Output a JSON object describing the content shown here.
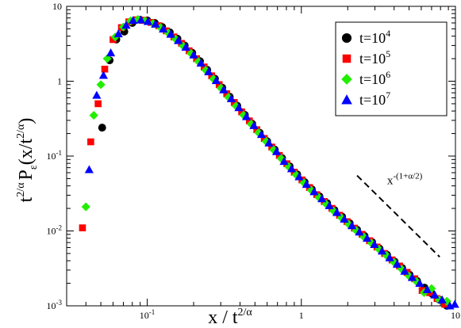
{
  "chart_data": {
    "type": "scatter",
    "title": "",
    "xlabel": "x / t^{2/α}",
    "ylabel": "t^{2/α} P_ε(x/t^{2/α})",
    "xscale": "log",
    "yscale": "log",
    "xlim": [
      0.03,
      10
    ],
    "ylim": [
      0.001,
      10
    ],
    "x_ticks": [
      {
        "value": 0.1,
        "base": "10",
        "exp": "-1"
      },
      {
        "value": 1,
        "label": "1"
      },
      {
        "value": 10,
        "label": "10"
      }
    ],
    "y_ticks": [
      {
        "value": 0.001,
        "base": "10",
        "exp": "-3"
      },
      {
        "value": 0.01,
        "base": "10",
        "exp": "-2"
      },
      {
        "value": 0.1,
        "base": "10",
        "exp": "-1"
      },
      {
        "value": 1,
        "label": "1"
      },
      {
        "value": 10,
        "label": "10"
      }
    ],
    "grid": false,
    "legend_position": "top-right",
    "series": [
      {
        "name_base": "t=10",
        "name_exp": "4",
        "marker": "circle",
        "color": "#000000",
        "points": [
          [
            0.051,
            0.24
          ],
          [
            0.057,
            1.9
          ],
          [
            0.063,
            3.6
          ],
          [
            0.071,
            4.6
          ],
          [
            0.08,
            6.0
          ],
          [
            0.09,
            6.6
          ],
          [
            0.1,
            6.5
          ],
          [
            0.112,
            6.0
          ],
          [
            0.125,
            5.3
          ],
          [
            0.14,
            4.5
          ],
          [
            0.157,
            3.7
          ],
          [
            0.175,
            3.0
          ],
          [
            0.196,
            2.4
          ],
          [
            0.22,
            1.85
          ],
          [
            0.245,
            1.42
          ],
          [
            0.275,
            1.08
          ],
          [
            0.307,
            0.82
          ],
          [
            0.343,
            0.62
          ],
          [
            0.384,
            0.47
          ],
          [
            0.43,
            0.355
          ],
          [
            0.48,
            0.27
          ],
          [
            0.537,
            0.205
          ],
          [
            0.6,
            0.158
          ],
          [
            0.672,
            0.122
          ],
          [
            0.75,
            0.094
          ],
          [
            0.84,
            0.073
          ],
          [
            0.94,
            0.057
          ],
          [
            1.05,
            0.045
          ],
          [
            1.17,
            0.036
          ],
          [
            1.31,
            0.029
          ],
          [
            1.47,
            0.0235
          ],
          [
            1.64,
            0.019
          ],
          [
            1.84,
            0.0155
          ],
          [
            2.06,
            0.0127
          ],
          [
            2.3,
            0.0104
          ],
          [
            2.57,
            0.0086
          ],
          [
            2.88,
            0.0071
          ],
          [
            3.22,
            0.0058
          ],
          [
            3.6,
            0.0048
          ],
          [
            4.03,
            0.0039
          ],
          [
            4.51,
            0.0032
          ],
          [
            5.04,
            0.0026
          ],
          [
            5.64,
            0.00215
          ],
          [
            6.3,
            0.00175
          ],
          [
            7.05,
            0.00145
          ],
          [
            7.9,
            0.0012
          ],
          [
            8.8,
            0.001
          ]
        ]
      },
      {
        "name_base": "t=10",
        "name_exp": "5",
        "marker": "square",
        "color": "#ff0000",
        "points": [
          [
            0.038,
            0.011
          ],
          [
            0.043,
            0.155
          ],
          [
            0.048,
            0.5
          ],
          [
            0.053,
            1.45
          ],
          [
            0.06,
            3.6
          ],
          [
            0.068,
            5.2
          ],
          [
            0.076,
            6.2
          ],
          [
            0.085,
            6.6
          ],
          [
            0.095,
            6.5
          ],
          [
            0.106,
            6.1
          ],
          [
            0.119,
            5.5
          ],
          [
            0.133,
            4.7
          ],
          [
            0.149,
            3.9
          ],
          [
            0.167,
            3.2
          ],
          [
            0.187,
            2.55
          ],
          [
            0.209,
            2.0
          ],
          [
            0.234,
            1.55
          ],
          [
            0.262,
            1.18
          ],
          [
            0.293,
            0.9
          ],
          [
            0.328,
            0.68
          ],
          [
            0.367,
            0.52
          ],
          [
            0.41,
            0.39
          ],
          [
            0.46,
            0.295
          ],
          [
            0.514,
            0.225
          ],
          [
            0.575,
            0.172
          ],
          [
            0.643,
            0.132
          ],
          [
            0.72,
            0.102
          ],
          [
            0.806,
            0.079
          ],
          [
            0.9,
            0.061
          ],
          [
            1.01,
            0.048
          ],
          [
            1.13,
            0.038
          ],
          [
            1.26,
            0.0305
          ],
          [
            1.41,
            0.0247
          ],
          [
            1.58,
            0.02
          ],
          [
            1.77,
            0.0162
          ],
          [
            1.98,
            0.0133
          ],
          [
            2.21,
            0.0109
          ],
          [
            2.48,
            0.009
          ],
          [
            2.77,
            0.0074
          ],
          [
            3.1,
            0.0061
          ],
          [
            3.47,
            0.005
          ],
          [
            3.88,
            0.0041
          ],
          [
            4.34,
            0.0034
          ],
          [
            4.86,
            0.0028
          ],
          [
            5.44,
            0.0023
          ],
          [
            6.08,
            0.0016
          ],
          [
            6.8,
            0.0015
          ],
          [
            7.6,
            0.00125
          ],
          [
            8.5,
            0.00105
          ]
        ]
      },
      {
        "name_base": "t=10",
        "name_exp": "6",
        "marker": "diamond",
        "color": "#22ee00",
        "points": [
          [
            0.04,
            0.021
          ],
          [
            0.045,
            0.35
          ],
          [
            0.05,
            0.9
          ],
          [
            0.055,
            2.0
          ],
          [
            0.062,
            3.9
          ],
          [
            0.07,
            5.3
          ],
          [
            0.078,
            6.4
          ],
          [
            0.087,
            6.7
          ],
          [
            0.097,
            6.4
          ],
          [
            0.109,
            5.9
          ],
          [
            0.122,
            5.2
          ],
          [
            0.137,
            4.4
          ],
          [
            0.153,
            3.65
          ],
          [
            0.171,
            2.95
          ],
          [
            0.192,
            2.35
          ],
          [
            0.215,
            1.83
          ],
          [
            0.24,
            1.4
          ],
          [
            0.269,
            1.07
          ],
          [
            0.301,
            0.81
          ],
          [
            0.337,
            0.61
          ],
          [
            0.377,
            0.465
          ],
          [
            0.422,
            0.352
          ],
          [
            0.472,
            0.268
          ],
          [
            0.528,
            0.205
          ],
          [
            0.591,
            0.157
          ],
          [
            0.661,
            0.121
          ],
          [
            0.74,
            0.093
          ],
          [
            0.828,
            0.072
          ],
          [
            0.926,
            0.056
          ],
          [
            1.04,
            0.044
          ],
          [
            1.16,
            0.035
          ],
          [
            1.3,
            0.028
          ],
          [
            1.45,
            0.0228
          ],
          [
            1.62,
            0.0185
          ],
          [
            1.82,
            0.015
          ],
          [
            2.03,
            0.0123
          ],
          [
            2.27,
            0.0101
          ],
          [
            2.55,
            0.0083
          ],
          [
            2.85,
            0.0069
          ],
          [
            3.19,
            0.0057
          ],
          [
            3.57,
            0.0047
          ],
          [
            4.0,
            0.0038
          ],
          [
            4.47,
            0.0031
          ],
          [
            5.0,
            0.0025
          ],
          [
            5.6,
            0.0021
          ],
          [
            6.27,
            0.0015
          ],
          [
            7.0,
            0.0017
          ],
          [
            7.85,
            0.0012
          ],
          [
            8.8,
            0.00115
          ]
        ]
      },
      {
        "name_base": "t=10",
        "name_exp": "7",
        "marker": "triangle",
        "color": "#0000ff",
        "points": [
          [
            0.042,
            0.066
          ],
          [
            0.047,
            0.65
          ],
          [
            0.052,
            1.2
          ],
          [
            0.058,
            2.4
          ],
          [
            0.065,
            4.3
          ],
          [
            0.073,
            5.6
          ],
          [
            0.081,
            6.5
          ],
          [
            0.091,
            6.6
          ],
          [
            0.101,
            6.3
          ],
          [
            0.113,
            5.8
          ],
          [
            0.127,
            5.0
          ],
          [
            0.142,
            4.25
          ],
          [
            0.159,
            3.5
          ],
          [
            0.178,
            2.85
          ],
          [
            0.2,
            2.25
          ],
          [
            0.223,
            1.75
          ],
          [
            0.25,
            1.34
          ],
          [
            0.28,
            1.02
          ],
          [
            0.313,
            0.77
          ],
          [
            0.351,
            0.585
          ],
          [
            0.393,
            0.445
          ],
          [
            0.44,
            0.337
          ],
          [
            0.492,
            0.256
          ],
          [
            0.551,
            0.195
          ],
          [
            0.616,
            0.15
          ],
          [
            0.69,
            0.115
          ],
          [
            0.772,
            0.085
          ],
          [
            0.864,
            0.068
          ],
          [
            0.967,
            0.053
          ],
          [
            1.08,
            0.042
          ],
          [
            1.21,
            0.0335
          ],
          [
            1.36,
            0.027
          ],
          [
            1.52,
            0.0218
          ],
          [
            1.7,
            0.0177
          ],
          [
            1.9,
            0.0144
          ],
          [
            2.13,
            0.0118
          ],
          [
            2.38,
            0.0097
          ],
          [
            2.67,
            0.008
          ],
          [
            2.98,
            0.0066
          ],
          [
            3.34,
            0.0054
          ],
          [
            3.74,
            0.0044
          ],
          [
            4.18,
            0.0036
          ],
          [
            4.68,
            0.0029
          ],
          [
            5.24,
            0.0024
          ],
          [
            5.86,
            0.002
          ],
          [
            6.56,
            0.00165
          ],
          [
            7.34,
            0.0014
          ],
          [
            8.2,
            0.0012
          ],
          [
            9.2,
            0.001
          ],
          [
            9.9,
            0.00105
          ]
        ]
      }
    ],
    "reference_line": {
      "x": [
        2.3,
        7.9
      ],
      "y": [
        0.055,
        0.0045
      ],
      "dashed": true
    },
    "annotation": {
      "base": "x",
      "exp": "-(1+α/2)",
      "x": 3.6,
      "y": 0.042
    }
  }
}
